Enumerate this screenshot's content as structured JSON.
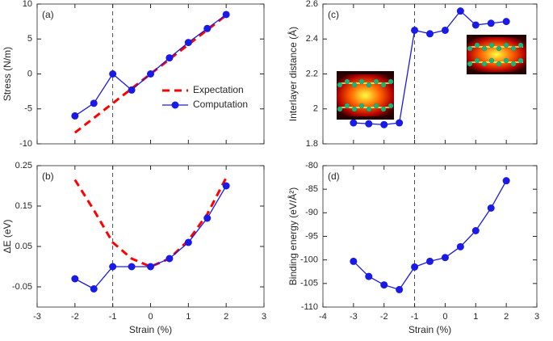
{
  "chart_data": [
    {
      "type": "line",
      "panel_label": "(a)",
      "ylabel": "Stress (N/m)",
      "x": [
        -2,
        -1.5,
        -1,
        -0.5,
        0,
        0.5,
        1,
        1.5,
        2
      ],
      "series": [
        {
          "name": "Expectation",
          "color": "#ff0000",
          "dashed": true,
          "markers": false,
          "values": [
            -8.4,
            -6.3,
            -4.2,
            -2.1,
            0,
            2.1,
            4.2,
            6.3,
            8.4
          ]
        },
        {
          "name": "Computation",
          "color": "#1a1ae6",
          "dashed": false,
          "markers": true,
          "values": [
            -6.0,
            -4.2,
            0.0,
            -2.3,
            0.0,
            2.3,
            4.5,
            6.5,
            8.5
          ]
        }
      ],
      "xlim": [
        -3,
        3
      ],
      "xticks": [
        -3,
        -2,
        -1,
        0,
        1,
        2,
        3
      ],
      "show_xtick_labels": false,
      "ylim": [
        -10,
        10
      ],
      "yticks": [
        -10,
        -5,
        0,
        5,
        10
      ],
      "reference_line": -1,
      "legend": "lower right"
    },
    {
      "type": "line",
      "panel_label": "(b)",
      "ylabel": "ΔE (eV)",
      "xlabel": "Strain (%)",
      "x": [
        -2,
        -1.5,
        -1,
        -0.5,
        0,
        0.5,
        1,
        1.5,
        2
      ],
      "series": [
        {
          "color": "#ff0000",
          "dashed": true,
          "markers": false,
          "values": [
            0.215,
            0.14,
            0.06,
            0.02,
            0.0,
            0.02,
            0.065,
            0.13,
            0.22
          ]
        },
        {
          "color": "#1a1ae6",
          "dashed": false,
          "markers": true,
          "values": [
            -0.03,
            -0.055,
            0.0,
            0.0,
            0.0,
            0.02,
            0.06,
            0.12,
            0.2
          ]
        }
      ],
      "xlim": [
        -3,
        3
      ],
      "xticks": [
        -3,
        -2,
        -1,
        0,
        1,
        2,
        3
      ],
      "show_xtick_labels": true,
      "ylim": [
        -0.1,
        0.25
      ],
      "yticks": [
        -0.05,
        0.05,
        0.15,
        0.25
      ],
      "reference_line": -1
    },
    {
      "type": "line",
      "panel_label": "(c)",
      "ylabel": "Interlayer distance (Å)",
      "x": [
        -3,
        -2.5,
        -2,
        -1.5,
        -1,
        -0.5,
        0,
        0.5,
        1,
        1.5,
        2
      ],
      "series": [
        {
          "color": "#1a1ae6",
          "dashed": false,
          "markers": true,
          "values": [
            1.92,
            1.915,
            1.91,
            1.92,
            2.45,
            2.43,
            2.45,
            2.56,
            2.48,
            2.49,
            2.5
          ]
        }
      ],
      "xlim": [
        -4,
        3
      ],
      "xticks": [
        -4,
        -3,
        -2,
        -1,
        0,
        1,
        2,
        3
      ],
      "show_xtick_labels": false,
      "ylim": [
        1.8,
        2.6
      ],
      "yticks": [
        1.8,
        2,
        2.2,
        2.4,
        2.6
      ],
      "reference_line": -1
    },
    {
      "type": "line",
      "panel_label": "(d)",
      "ylabel": "Binding energy (eV/Å²)",
      "xlabel": "Strain (%)",
      "x": [
        -3,
        -2.5,
        -2,
        -1.5,
        -1,
        -0.5,
        0,
        0.5,
        1,
        1.5,
        2
      ],
      "series": [
        {
          "color": "#1a1ae6",
          "dashed": false,
          "markers": true,
          "values": [
            -100.3,
            -103.5,
            -105.3,
            -106.3,
            -101.5,
            -100.3,
            -99.5,
            -97.2,
            -93.8,
            -89,
            -83.2
          ]
        }
      ],
      "xlim": [
        -4,
        3
      ],
      "xticks": [
        -4,
        -3,
        -2,
        -1,
        0,
        1,
        2,
        3
      ],
      "show_xtick_labels": true,
      "ylim": [
        -110,
        -80
      ],
      "yticks": [
        -110,
        -105,
        -100,
        -95,
        -90,
        -85,
        -80
      ],
      "reference_line": -1
    }
  ]
}
